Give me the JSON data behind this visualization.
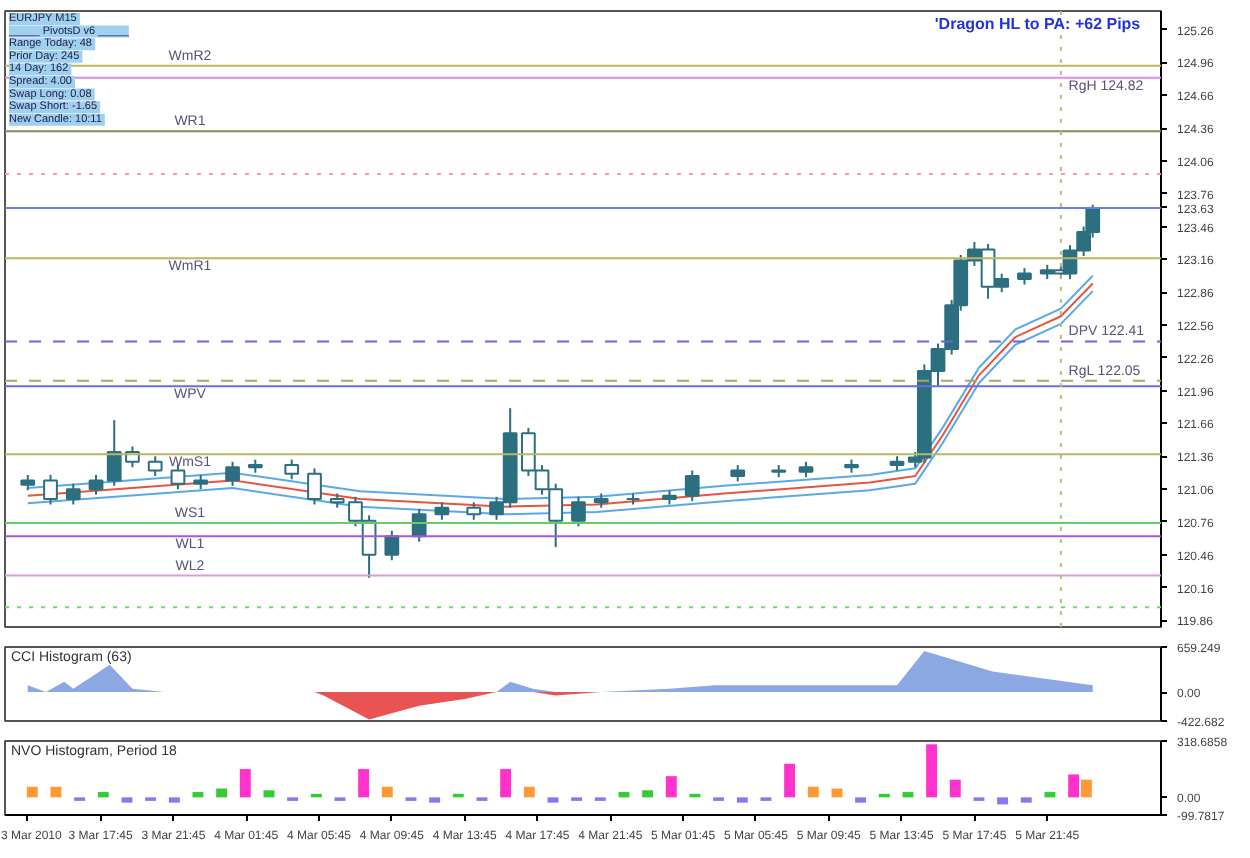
{
  "chart_data": [
    {
      "type": "candlestick",
      "title": "EURJPY  M15",
      "subtitle": "'Dragon HL to PA:  +62 Pips",
      "color": "#2b6f80",
      "annotations": [
        "_____ PivotsD v6 _____",
        "Range Today:  48",
        "Prior Day:  245",
        "14 Day:  162",
        "Spread:  4.00",
        "Swap Long:  0.08",
        "Swap Short:  -1.65",
        "New Candle:  10:11"
      ],
      "x": [
        "2010-03-03T13:45",
        "2010-03-03T15:00",
        "2010-03-03T16:15",
        "2010-03-03T17:30",
        "2010-03-03T18:30",
        "2010-03-03T19:30",
        "2010-03-03T20:45",
        "2010-03-03T22:00",
        "2010-03-03T23:15",
        "2010-03-04T01:00",
        "2010-03-04T02:15",
        "2010-03-04T04:15",
        "2010-03-04T05:30",
        "2010-03-04T06:45",
        "2010-03-04T07:45",
        "2010-03-04T08:30",
        "2010-03-04T09:45",
        "2010-03-04T11:15",
        "2010-03-04T12:30",
        "2010-03-04T14:15",
        "2010-03-04T15:30",
        "2010-03-04T16:15",
        "2010-03-04T17:15",
        "2010-03-04T18:00",
        "2010-03-04T18:45",
        "2010-03-04T20:00",
        "2010-03-04T21:15",
        "2010-03-04T23:00",
        "2010-03-05T01:00",
        "2010-03-05T02:15",
        "2010-03-05T04:45",
        "2010-03-05T07:00",
        "2010-03-05T08:30",
        "2010-03-05T11:00",
        "2010-03-05T13:30",
        "2010-03-05T14:30",
        "2010-03-05T15:00",
        "2010-03-05T15:45",
        "2010-03-05T16:30",
        "2010-03-05T17:00",
        "2010-03-05T17:45",
        "2010-03-05T18:30",
        "2010-03-05T19:15",
        "2010-03-05T20:30",
        "2010-03-05T21:45",
        "2010-03-05T22:30",
        "2010-03-05T23:00",
        "2010-03-05T23:45",
        "2010-03-06T00:15"
      ],
      "ohlc": [
        [
          121.1,
          121.19,
          121.05,
          121.14
        ],
        [
          121.14,
          121.19,
          120.92,
          120.97
        ],
        [
          120.97,
          121.11,
          120.92,
          121.06
        ],
        [
          121.06,
          121.19,
          121.01,
          121.14
        ],
        [
          121.14,
          121.69,
          121.09,
          121.4
        ],
        [
          121.4,
          121.45,
          121.26,
          121.31
        ],
        [
          121.31,
          121.36,
          121.18,
          121.23
        ],
        [
          121.23,
          121.28,
          121.06,
          121.11
        ],
        [
          121.11,
          121.19,
          121.06,
          121.14
        ],
        [
          121.14,
          121.31,
          121.09,
          121.26
        ],
        [
          121.26,
          121.33,
          121.21,
          121.28
        ],
        [
          121.28,
          121.33,
          121.15,
          121.2
        ],
        [
          121.2,
          121.25,
          120.92,
          120.97
        ],
        [
          120.97,
          121.02,
          120.89,
          120.94
        ],
        [
          120.94,
          120.99,
          120.72,
          120.77
        ],
        [
          120.77,
          120.82,
          120.25,
          120.46
        ],
        [
          120.46,
          120.68,
          120.41,
          120.63
        ],
        [
          120.63,
          120.88,
          120.58,
          120.83
        ],
        [
          120.83,
          120.94,
          120.78,
          120.89
        ],
        [
          120.89,
          120.94,
          120.78,
          120.83
        ],
        [
          120.83,
          120.99,
          120.78,
          120.94
        ],
        [
          120.94,
          121.8,
          120.89,
          121.57
        ],
        [
          121.57,
          121.62,
          121.18,
          121.23
        ],
        [
          121.23,
          121.28,
          121.01,
          121.06
        ],
        [
          121.06,
          121.11,
          120.53,
          120.77
        ],
        [
          120.77,
          120.99,
          120.72,
          120.94
        ],
        [
          120.94,
          121.02,
          120.89,
          120.97
        ],
        [
          120.97,
          121.02,
          120.92,
          120.97
        ],
        [
          120.97,
          121.05,
          120.92,
          121.0
        ],
        [
          121.0,
          121.23,
          120.95,
          121.18
        ],
        [
          121.18,
          121.28,
          121.13,
          121.23
        ],
        [
          121.23,
          121.28,
          121.17,
          121.22
        ],
        [
          121.22,
          121.31,
          121.17,
          121.26
        ],
        [
          121.26,
          121.33,
          121.21,
          121.28
        ],
        [
          121.28,
          121.36,
          121.23,
          121.31
        ],
        [
          121.31,
          121.4,
          121.26,
          121.35
        ],
        [
          121.35,
          122.2,
          121.3,
          122.14
        ],
        [
          122.14,
          122.39,
          122.0,
          122.34
        ],
        [
          122.34,
          122.79,
          122.29,
          122.74
        ],
        [
          122.74,
          123.2,
          122.69,
          123.15
        ],
        [
          123.15,
          123.32,
          123.1,
          123.25
        ],
        [
          123.25,
          123.3,
          122.8,
          122.91
        ],
        [
          122.91,
          123.03,
          122.86,
          122.98
        ],
        [
          122.98,
          123.08,
          122.93,
          123.03
        ],
        [
          123.03,
          123.11,
          122.98,
          123.06
        ],
        [
          123.06,
          123.11,
          122.98,
          123.03
        ],
        [
          123.03,
          123.29,
          122.98,
          123.24
        ],
        [
          123.24,
          123.46,
          123.19,
          123.41
        ],
        [
          123.41,
          123.66,
          123.36,
          123.63
        ]
      ],
      "series": [
        {
          "type": "line",
          "color": "#5aa9e6",
          "x": [
            "2010-03-03T13:45",
            "2010-03-04T01:00",
            "2010-03-04T08:00",
            "2010-03-04T16:00",
            "2010-03-04T21:00",
            "2010-03-05T04:00",
            "2010-03-05T12:00",
            "2010-03-05T14:30",
            "2010-03-05T16:00",
            "2010-03-05T18:00",
            "2010-03-05T20:00",
            "2010-03-05T22:30",
            "2010-03-06T00:15"
          ],
          "values": [
            121.07,
            121.21,
            121.04,
            120.97,
            120.99,
            121.09,
            121.19,
            121.25,
            121.62,
            122.17,
            122.52,
            122.71,
            123.01
          ]
        },
        {
          "type": "line",
          "color": "#e8543f",
          "x": [
            "2010-03-03T13:45",
            "2010-03-04T01:00",
            "2010-03-04T08:00",
            "2010-03-04T16:00",
            "2010-03-04T21:00",
            "2010-03-05T04:00",
            "2010-03-05T12:00",
            "2010-03-05T14:30",
            "2010-03-05T16:00",
            "2010-03-05T18:00",
            "2010-03-05T20:00",
            "2010-03-05T22:30",
            "2010-03-06T00:15"
          ],
          "values": [
            121.0,
            121.14,
            120.97,
            120.9,
            120.92,
            121.02,
            121.12,
            121.18,
            121.55,
            122.1,
            122.45,
            122.64,
            122.94
          ]
        },
        {
          "type": "line",
          "color": "#5aa9e6",
          "x": [
            "2010-03-03T13:45",
            "2010-03-04T01:00",
            "2010-03-04T08:00",
            "2010-03-04T16:00",
            "2010-03-04T21:00",
            "2010-03-05T04:00",
            "2010-03-05T12:00",
            "2010-03-05T14:30",
            "2010-03-05T16:00",
            "2010-03-05T18:00",
            "2010-03-05T20:00",
            "2010-03-05T22:30",
            "2010-03-06T00:15"
          ],
          "values": [
            120.93,
            121.07,
            120.9,
            120.83,
            120.85,
            120.95,
            121.05,
            121.11,
            121.48,
            122.03,
            122.38,
            122.57,
            122.87
          ]
        }
      ],
      "xlim": [
        "2010-03-03T12:30",
        "2010-03-06T04:00"
      ],
      "ylim": [
        119.8,
        125.43
      ],
      "yticks": [
        125.26,
        124.96,
        124.66,
        124.36,
        124.06,
        123.76,
        123.63,
        123.46,
        123.16,
        122.86,
        122.56,
        122.26,
        121.96,
        121.66,
        121.36,
        121.06,
        120.76,
        120.46,
        120.16,
        119.86
      ],
      "tick_labels": "y",
      "grid": false,
      "ref_lines": [
        {
          "axis": "y",
          "value": 124.93,
          "label": "WmR2",
          "color": "#b8b860"
        },
        {
          "axis": "y",
          "value": 124.33,
          "label": "WR1",
          "color": "#8a8a55"
        },
        {
          "axis": "y",
          "value": 123.63,
          "color": "#6b7fe0"
        },
        {
          "axis": "y",
          "value": 123.17,
          "label": "WmR1",
          "color": "#b8b860"
        },
        {
          "axis": "y",
          "value": 122.0,
          "label": "WPV",
          "color": "#6b6be0"
        },
        {
          "axis": "y",
          "value": 121.38,
          "label": "WmS1",
          "color": "#b8b860"
        },
        {
          "axis": "y",
          "value": 120.75,
          "label": "WS1",
          "color": "#66cc66"
        },
        {
          "axis": "y",
          "value": 120.63,
          "label": "WL1",
          "color": "#aa55dd"
        },
        {
          "axis": "y",
          "value": 120.27,
          "label": "WL2",
          "color": "#dd99dd"
        },
        {
          "axis": "y",
          "value": 124.82,
          "label": "RgH   124.82",
          "color": "#dd88ee",
          "line_style": "solid"
        },
        {
          "axis": "y",
          "value": 122.41,
          "label": "DPV   122.41",
          "color": "#6666dd",
          "line_style": "dashed"
        },
        {
          "axis": "y",
          "value": 122.05,
          "label": "RgL   122.05",
          "color": "#aaaa55",
          "line_style": "dashed"
        },
        {
          "axis": "y",
          "value": 123.94,
          "color": "#ff9999",
          "line_style": "dotted"
        },
        {
          "axis": "y",
          "value": 119.98,
          "color": "#66dd66",
          "line_style": "dotted"
        },
        {
          "axis": "x",
          "value": "2010-03-05T22:30",
          "color": "#bbbb77",
          "line_style": "dotted"
        }
      ]
    },
    {
      "type": "area",
      "title": "CCI Histogram  (63)",
      "x": [
        "2010-03-03T13:45",
        "2010-03-03T14:45",
        "2010-03-03T15:45",
        "2010-03-03T16:15",
        "2010-03-03T18:15",
        "2010-03-03T19:30",
        "2010-03-03T21:15",
        "2010-03-04T02:15",
        "2010-03-04T05:30",
        "2010-03-04T06:00",
        "2010-03-04T08:30",
        "2010-03-04T11:15",
        "2010-03-04T13:45",
        "2010-03-04T15:30",
        "2010-03-04T16:15",
        "2010-03-04T17:30",
        "2010-03-04T18:45",
        "2010-03-04T21:15",
        "2010-03-05T01:00",
        "2010-03-05T03:30",
        "2010-03-05T13:30",
        "2010-03-05T15:00",
        "2010-03-05T18:45",
        "2010-03-06T00:15"
      ],
      "series": [
        {
          "color": "#7f9fe0",
          "values": [
            100,
            0,
            150,
            50,
            400,
            50,
            0,
            0,
            0,
            0,
            0,
            0,
            0,
            0,
            150,
            50,
            0,
            0,
            50,
            100,
            100,
            600,
            300,
            100
          ]
        },
        {
          "color": "#e84040",
          "values": [
            0,
            0,
            0,
            0,
            0,
            0,
            0,
            0,
            0,
            -50,
            -400,
            -200,
            -100,
            0,
            0,
            0,
            -50,
            0,
            0,
            0,
            0,
            0,
            0,
            0
          ]
        }
      ],
      "xlim": [
        "2010-03-03T12:30",
        "2010-03-06T04:00"
      ],
      "ylim": [
        -422.682,
        659.249
      ],
      "yticks": [
        659.249,
        {
          "value": 0,
          "label": "0.00"
        },
        -422.682
      ],
      "tick_labels": "y",
      "grid": false
    },
    {
      "type": "bar",
      "title": "NVO Histogram, Period 18",
      "x": [
        "2010-03-03T14:00",
        "2010-03-03T15:18",
        "2010-03-03T16:36",
        "2010-03-03T17:54",
        "2010-03-03T19:12",
        "2010-03-03T20:30",
        "2010-03-03T21:48",
        "2010-03-03T23:06",
        "2010-03-04T00:24",
        "2010-03-04T01:42",
        "2010-03-04T03:00",
        "2010-03-04T04:18",
        "2010-03-04T05:36",
        "2010-03-04T06:54",
        "2010-03-04T08:12",
        "2010-03-04T09:30",
        "2010-03-04T10:48",
        "2010-03-04T12:06",
        "2010-03-04T13:24",
        "2010-03-04T14:42",
        "2010-03-04T16:00",
        "2010-03-04T17:18",
        "2010-03-04T18:36",
        "2010-03-04T19:54",
        "2010-03-04T21:12",
        "2010-03-04T22:30",
        "2010-03-04T23:48",
        "2010-03-05T01:06",
        "2010-03-05T02:24",
        "2010-03-05T03:42",
        "2010-03-05T05:00",
        "2010-03-05T06:18",
        "2010-03-05T07:36",
        "2010-03-05T08:54",
        "2010-03-05T10:12",
        "2010-03-05T11:30",
        "2010-03-05T12:48",
        "2010-03-05T14:06",
        "2010-03-05T15:24",
        "2010-03-05T16:42",
        "2010-03-05T18:00",
        "2010-03-05T19:18",
        "2010-03-05T20:36",
        "2010-03-05T21:54",
        "2010-03-05T23:12",
        "2010-03-05T23:54"
      ],
      "values": [
        60,
        60,
        -20,
        30,
        -30,
        -20,
        -30,
        30,
        50,
        160,
        40,
        -20,
        20,
        -20,
        160,
        60,
        -20,
        -30,
        20,
        -20,
        160,
        60,
        -30,
        -20,
        -20,
        30,
        40,
        120,
        20,
        -20,
        -30,
        -20,
        190,
        60,
        50,
        -30,
        20,
        30,
        300,
        100,
        -20,
        -40,
        -30,
        30,
        130,
        100
      ],
      "colors": [
        "#ff9933",
        "#ff9933",
        "#8877ee",
        "#33cc33",
        "#8877ee",
        "#8877ee",
        "#8877ee",
        "#33cc33",
        "#33cc33",
        "#ff33cc",
        "#33cc33",
        "#8877ee",
        "#33cc33",
        "#8877ee",
        "#ff33cc",
        "#ff9933",
        "#8877ee",
        "#8877ee",
        "#33cc33",
        "#8877ee",
        "#ff33cc",
        "#ff9933",
        "#8877ee",
        "#8877ee",
        "#8877ee",
        "#33cc33",
        "#33cc33",
        "#ff33cc",
        "#33cc33",
        "#8877ee",
        "#8877ee",
        "#8877ee",
        "#ff33cc",
        "#ff9933",
        "#ff9933",
        "#8877ee",
        "#33cc33",
        "#33cc33",
        "#ff33cc",
        "#ff33cc",
        "#8877ee",
        "#8877ee",
        "#8877ee",
        "#33cc33",
        "#ff33cc",
        "#ff9933"
      ],
      "xlim": [
        "2010-03-03T12:30",
        "2010-03-06T04:00"
      ],
      "ylim": [
        -99.7817,
        318.6858
      ],
      "yticks": [
        318.6858,
        {
          "value": 0,
          "label": "0.00"
        },
        -99.7817
      ],
      "xticks": [
        {
          "value": "2010-03-03T13:45",
          "label": "3 Mar 2010"
        },
        {
          "value": "2010-03-03T17:45",
          "label": "3 Mar 17:45"
        },
        {
          "value": "2010-03-03T21:45",
          "label": "3 Mar 21:45"
        },
        {
          "value": "2010-03-04T01:45",
          "label": "4 Mar 01:45"
        },
        {
          "value": "2010-03-04T05:45",
          "label": "4 Mar 05:45"
        },
        {
          "value": "2010-03-04T09:45",
          "label": "4 Mar 09:45"
        },
        {
          "value": "2010-03-04T13:45",
          "label": "4 Mar 13:45"
        },
        {
          "value": "2010-03-04T17:45",
          "label": "4 Mar 17:45"
        },
        {
          "value": "2010-03-04T21:45",
          "label": "4 Mar 21:45"
        },
        {
          "value": "2010-03-05T01:45",
          "label": "5 Mar 01:45"
        },
        {
          "value": "2010-03-05T05:45",
          "label": "5 Mar 05:45"
        },
        {
          "value": "2010-03-05T09:45",
          "label": "5 Mar 09:45"
        },
        {
          "value": "2010-03-05T13:45",
          "label": "5 Mar 13:45"
        },
        {
          "value": "2010-03-05T17:45",
          "label": "5 Mar 17:45"
        },
        {
          "value": "2010-03-05T21:45",
          "label": "5 Mar 21:45"
        }
      ],
      "grid": false
    }
  ]
}
